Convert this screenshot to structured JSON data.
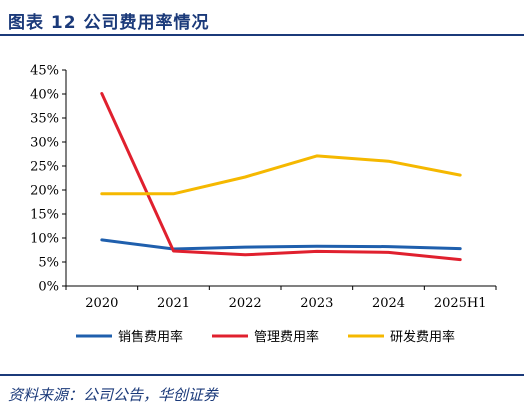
{
  "figure": {
    "title": "图表 12   公司费用率情况",
    "source": "资料来源：公司公告，华创证券"
  },
  "chart_data": {
    "type": "line",
    "title": "",
    "xlabel": "",
    "ylabel": "",
    "x": [
      "2020",
      "2021",
      "2022",
      "2023",
      "2024",
      "2025H1"
    ],
    "ylim": [
      0,
      45
    ],
    "yticks": [
      "0%",
      "5%",
      "10%",
      "15%",
      "20%",
      "25%",
      "30%",
      "35%",
      "40%",
      "45%"
    ],
    "grid": false,
    "legend_position": "bottom",
    "series": [
      {
        "name": "销售费用率",
        "color": "#1f5fad",
        "values": [
          9.6,
          7.7,
          8.1,
          8.3,
          8.2,
          7.8
        ]
      },
      {
        "name": "管理费用率",
        "color": "#e0202e",
        "values": [
          40.1,
          7.3,
          6.5,
          7.2,
          7.0,
          5.5
        ]
      },
      {
        "name": "研发费用率",
        "color": "#f5b800",
        "values": [
          19.2,
          19.2,
          22.7,
          27.1,
          26.0,
          23.1
        ]
      }
    ]
  }
}
